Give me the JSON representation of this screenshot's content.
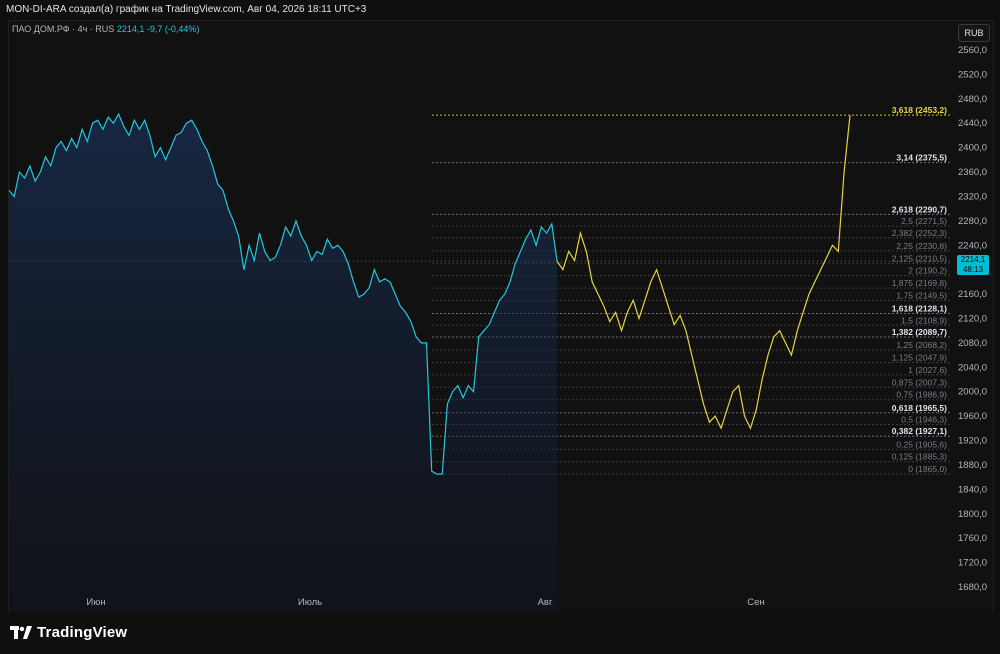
{
  "header": {
    "title": "MON-DI-ARA создал(а) график на TradingView.com, Авг 04, 2026 18:11 UTC+3"
  },
  "symbol": {
    "name": "ПАО ДОМ.РФ · 4ч · RUS",
    "last": "2214,1",
    "change": "-9,7 (-0,44%)"
  },
  "currency_button": "RUB",
  "price_badge": {
    "price": "2214,1",
    "countdown": "48:13"
  },
  "footer": {
    "brand": "TradingView"
  },
  "colors": {
    "price_line": "#26c6da",
    "projection": "#e6d441",
    "background": "#111111",
    "badge": "#00bcd4"
  },
  "chart_data": {
    "type": "line",
    "title": "",
    "xlabel": "",
    "ylabel": "",
    "x_ticks": [
      "Июн",
      "Июль",
      "Авг",
      "Сен"
    ],
    "y_ticks": [
      "2560,0",
      "2520,0",
      "2480,0",
      "2440,0",
      "2400,0",
      "2360,0",
      "2320,0",
      "2280,0",
      "2240,0",
      "2200,0",
      "2160,0",
      "2120,0",
      "2080,0",
      "2040,0",
      "2000,0",
      "1960,0",
      "1920,0",
      "1880,0",
      "1840,0",
      "1800,0",
      "1760,0",
      "1720,0",
      "1680,0"
    ],
    "ylim": [
      1660,
      2575
    ],
    "grid": false,
    "series": [
      {
        "values": [
          2330,
          2320,
          2360,
          2350,
          2370,
          2345,
          2360,
          2385,
          2370,
          2400,
          2410,
          2395,
          2415,
          2400,
          2430,
          2410,
          2440,
          2445,
          2430,
          2450,
          2440,
          2455,
          2435,
          2420,
          2445,
          2430,
          2445,
          2420,
          2385,
          2400,
          2380,
          2400,
          2420,
          2425,
          2440,
          2445,
          2430,
          2410,
          2395,
          2370,
          2340,
          2330,
          2300,
          2280,
          2255,
          2200,
          2240,
          2215,
          2260,
          2230,
          2215,
          2220,
          2240,
          2270,
          2255,
          2280,
          2255,
          2240,
          2215,
          2230,
          2225,
          2250,
          2235,
          2240,
          2230,
          2210,
          2180,
          2155,
          2160,
          2170,
          2200,
          2180,
          2185,
          2180,
          2160,
          2140,
          2130,
          2115,
          2090,
          2080,
          2080,
          1870,
          1865,
          1865,
          1980,
          2000,
          2010,
          1990,
          2010,
          2000,
          2090,
          2100,
          2110,
          2130,
          2150,
          2160,
          2180,
          2210,
          2230,
          2250,
          2265,
          2240,
          2270,
          2260,
          2275,
          2214
        ]
      },
      {
        "values": [
          2214,
          2200,
          2230,
          2215,
          2260,
          2230,
          2180,
          2160,
          2140,
          2115,
          2130,
          2100,
          2130,
          2150,
          2120,
          2150,
          2180,
          2200,
          2170,
          2140,
          2110,
          2125,
          2100,
          2060,
          2020,
          1980,
          1950,
          1960,
          1940,
          1970,
          2000,
          2010,
          1960,
          1940,
          1970,
          2020,
          2060,
          2090,
          2100,
          2080,
          2060,
          2100,
          2130,
          2160,
          2180,
          2200,
          2220,
          2240,
          2230,
          2360,
          2453
        ]
      }
    ],
    "fib_levels": [
      {
        "label": "3,618 (2453,2)",
        "value": 2453.2,
        "emphasis": "yellow"
      },
      {
        "label": "3,14 (2375,5)",
        "value": 2375.5,
        "emphasis": "bold"
      },
      {
        "label": "2,618 (2290,7)",
        "value": 2290.7,
        "emphasis": "bold"
      },
      {
        "label": "2,5 (2271,5)",
        "value": 2271.5,
        "emphasis": "dim"
      },
      {
        "label": "2,382 (2252,3)",
        "value": 2252.3,
        "emphasis": "dim"
      },
      {
        "label": "2,25 (2230,8)",
        "value": 2230.8,
        "emphasis": "dim"
      },
      {
        "label": "2,125 (2210,5)",
        "value": 2210.5,
        "emphasis": "dim"
      },
      {
        "label": "2 (2190,2)",
        "value": 2190.2,
        "emphasis": "dim"
      },
      {
        "label": "1,875 (2169,8)",
        "value": 2169.8,
        "emphasis": "dim"
      },
      {
        "label": "1,75 (2149,5)",
        "value": 2149.5,
        "emphasis": "dim"
      },
      {
        "label": "1,618 (2128,1)",
        "value": 2128.1,
        "emphasis": "bold"
      },
      {
        "label": "1,5 (2108,9)",
        "value": 2108.9,
        "emphasis": "dim"
      },
      {
        "label": "1,382 (2089,7)",
        "value": 2089.7,
        "emphasis": "bold"
      },
      {
        "label": "1,25 (2068,2)",
        "value": 2068.2,
        "emphasis": "dim"
      },
      {
        "label": "1,125 (2047,9)",
        "value": 2047.9,
        "emphasis": "dim"
      },
      {
        "label": "1 (2027,6)",
        "value": 2027.6,
        "emphasis": "dim"
      },
      {
        "label": "0,875 (2007,3)",
        "value": 2007.3,
        "emphasis": "dim"
      },
      {
        "label": "0,75 (1986,9)",
        "value": 1986.9,
        "emphasis": "dim"
      },
      {
        "label": "0,618 (1965,5)",
        "value": 1965.5,
        "emphasis": "bold"
      },
      {
        "label": "0,5 (1946,3)",
        "value": 1946.3,
        "emphasis": "dim"
      },
      {
        "label": "0,382 (1927,1)",
        "value": 1927.1,
        "emphasis": "bold"
      },
      {
        "label": "0,25 (1905,6)",
        "value": 1905.6,
        "emphasis": "dim"
      },
      {
        "label": "0,125 (1885,3)",
        "value": 1885.3,
        "emphasis": "dim"
      },
      {
        "label": "0 (1865,0)",
        "value": 1865.0,
        "emphasis": "dim"
      }
    ],
    "current_price": 2214.1
  }
}
